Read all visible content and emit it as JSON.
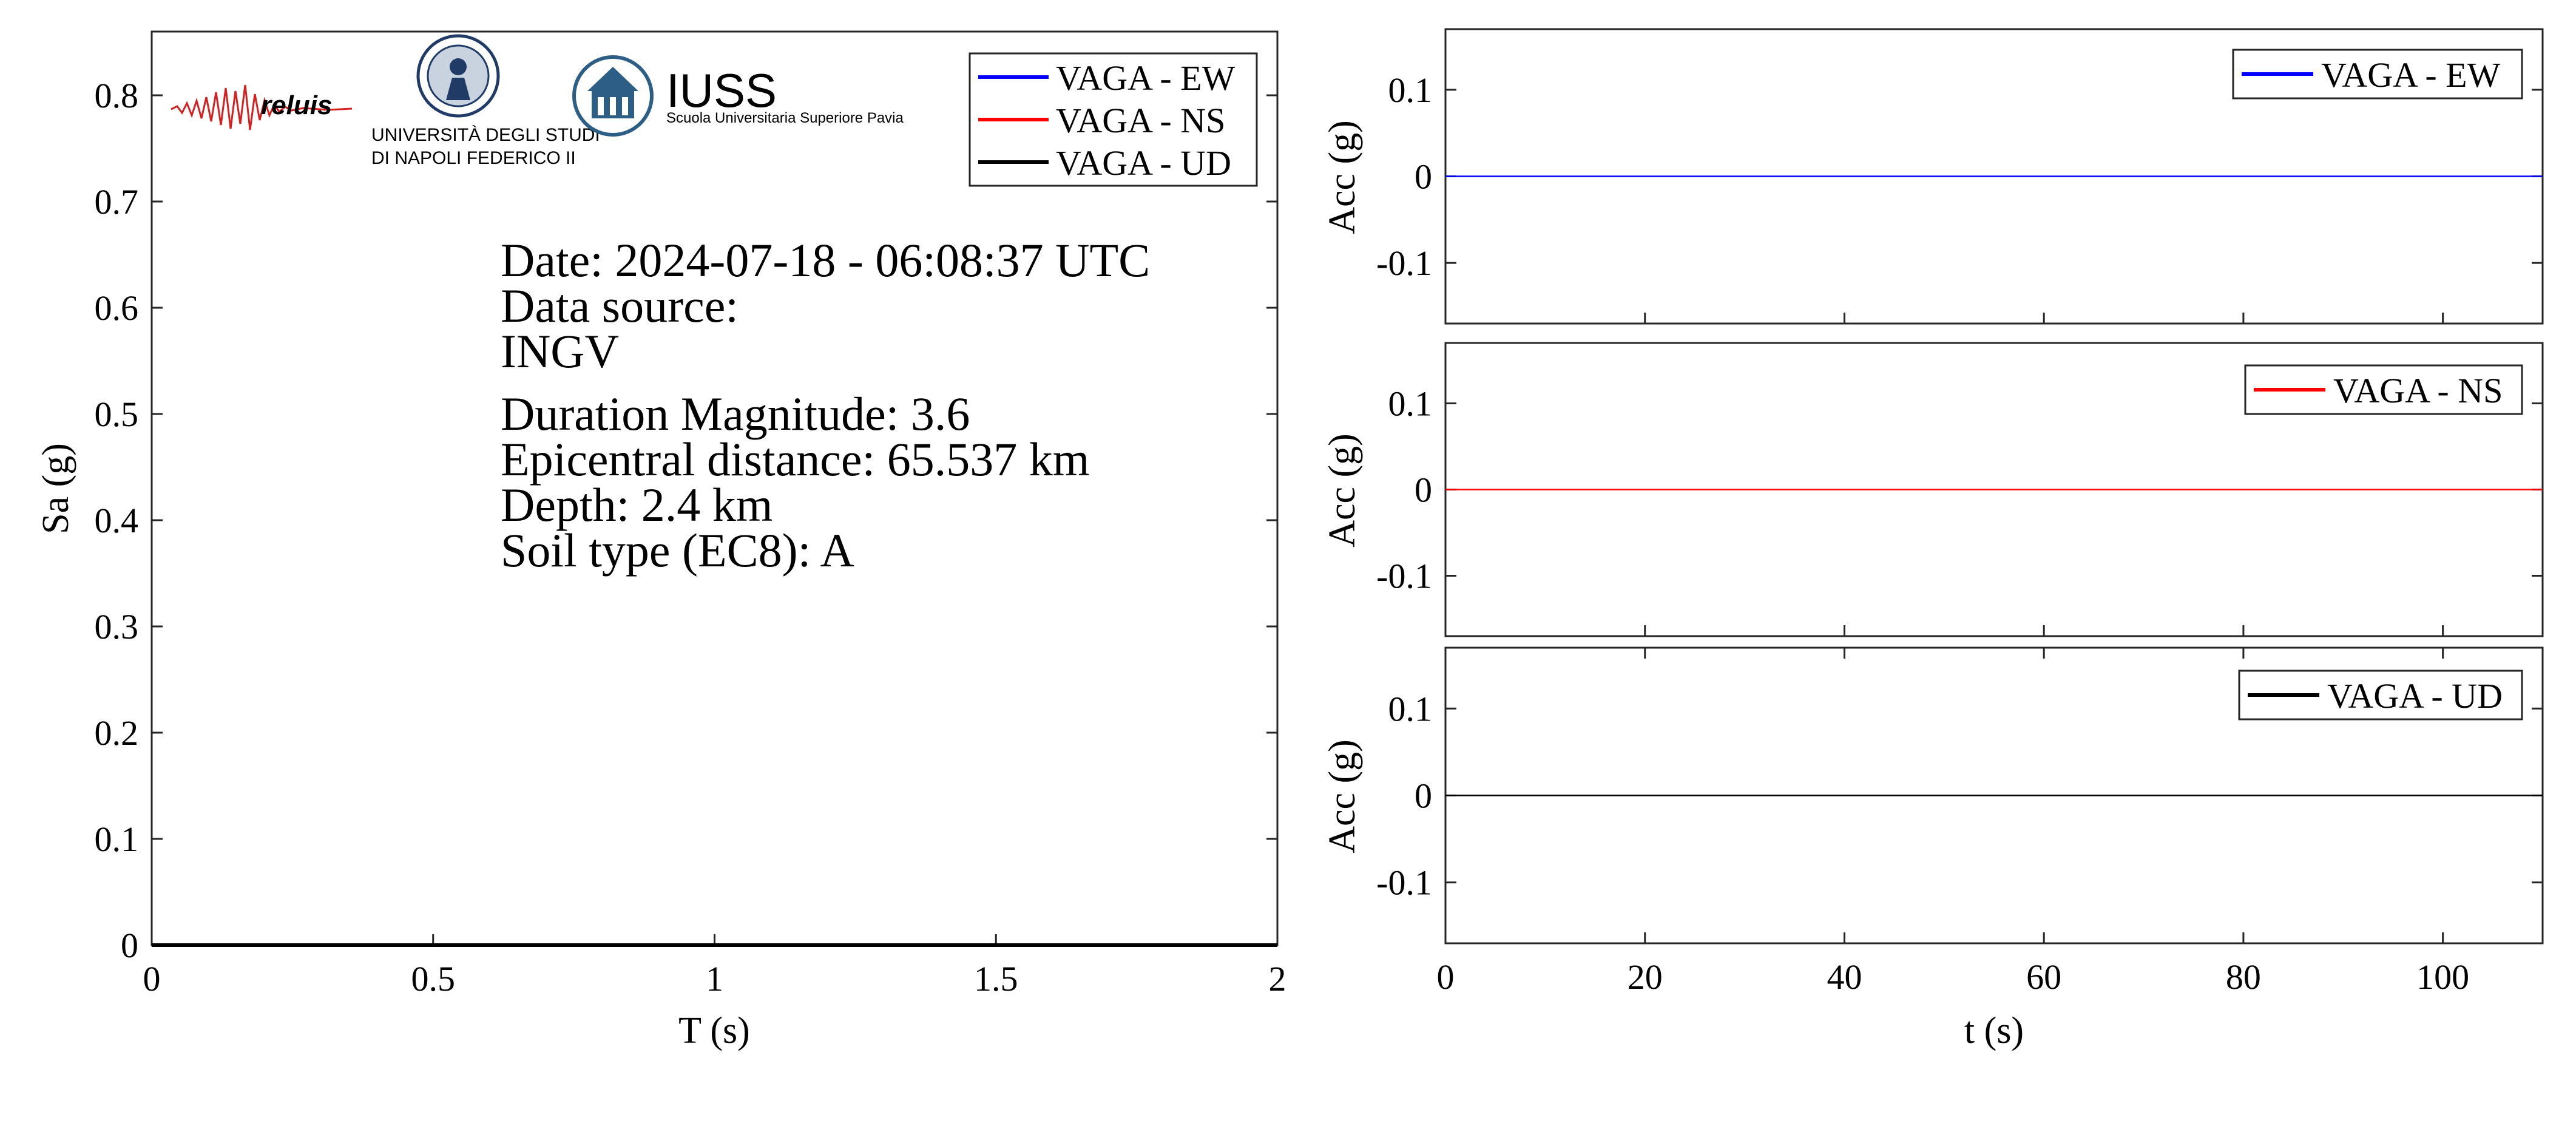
{
  "logos": {
    "reluis": {
      "label": "reluis",
      "color": "#1a2a7a",
      "trace_color": "#d62020"
    },
    "unina": {
      "line1": "UNIVERSITÀ DEGLI STUDI",
      "line2": "DI NAPOLI FEDERICO II",
      "color": "#1f3b66"
    },
    "iuss": {
      "name": "IUSS",
      "subtitle": "Scuola Universitaria Superiore Pavia",
      "color": "#2d5f86"
    }
  },
  "info": {
    "date": "Date: 2024-07-18 - 06:08:37 UTC",
    "source_label": "Data source:",
    "source": "INGV",
    "magnitude": "Duration Magnitude: 3.6",
    "distance": "Epicentral distance: 65.537 km",
    "depth": "Depth: 2.4 km",
    "soil": "Soil type (EC8): A"
  },
  "chart_data": [
    {
      "type": "line",
      "xlabel": "T (s)",
      "ylabel": "Sa (g)",
      "xlim": [
        0,
        2
      ],
      "ylim": [
        0,
        0.86
      ],
      "xticks": [
        0,
        0.5,
        1,
        1.5,
        2
      ],
      "xtick_labels": [
        "0",
        "0.5",
        "1",
        "1.5",
        "2"
      ],
      "yticks": [
        0,
        0.1,
        0.2,
        0.3,
        0.4,
        0.5,
        0.6,
        0.7,
        0.8
      ],
      "ytick_labels": [
        "0",
        "0.1",
        "0.2",
        "0.3",
        "0.4",
        "0.5",
        "0.6",
        "0.7",
        "0.8"
      ],
      "legend_position": "top-right",
      "series": [
        {
          "name": "VAGA - EW",
          "color": "#0000ff",
          "x": [
            0,
            2
          ],
          "y": [
            0,
            0
          ]
        },
        {
          "name": "VAGA - NS",
          "color": "#ff0000",
          "x": [
            0,
            2
          ],
          "y": [
            0,
            0
          ]
        },
        {
          "name": "VAGA - UD",
          "color": "#000000",
          "x": [
            0,
            2
          ],
          "y": [
            0,
            0
          ]
        }
      ]
    },
    {
      "type": "line",
      "xlabel": "",
      "ylabel": "Acc (g)",
      "xlim": [
        0,
        110
      ],
      "ylim": [
        -0.17,
        0.17
      ],
      "yticks": [
        -0.1,
        0,
        0.1
      ],
      "ytick_labels": [
        "-0.1",
        "0",
        "0.1"
      ],
      "legend_position": "top-right",
      "series": [
        {
          "name": "VAGA - EW",
          "color": "#0000ff",
          "x": [
            0,
            110
          ],
          "y": [
            0,
            0
          ]
        }
      ]
    },
    {
      "type": "line",
      "xlabel": "",
      "ylabel": "Acc (g)",
      "xlim": [
        0,
        110
      ],
      "ylim": [
        -0.17,
        0.17
      ],
      "yticks": [
        -0.1,
        0,
        0.1
      ],
      "ytick_labels": [
        "-0.1",
        "0",
        "0.1"
      ],
      "legend_position": "top-right",
      "series": [
        {
          "name": "VAGA - NS",
          "color": "#ff0000",
          "x": [
            0,
            110
          ],
          "y": [
            0,
            0
          ]
        }
      ]
    },
    {
      "type": "line",
      "xlabel": "t (s)",
      "ylabel": "Acc (g)",
      "xlim": [
        0,
        110
      ],
      "ylim": [
        -0.17,
        0.17
      ],
      "xticks": [
        0,
        20,
        40,
        60,
        80,
        100
      ],
      "xtick_labels": [
        "0",
        "20",
        "40",
        "60",
        "80",
        "100"
      ],
      "yticks": [
        -0.1,
        0,
        0.1
      ],
      "ytick_labels": [
        "-0.1",
        "0",
        "0.1"
      ],
      "legend_position": "top-right",
      "series": [
        {
          "name": "VAGA - UD",
          "color": "#000000",
          "x": [
            0,
            110
          ],
          "y": [
            0,
            0
          ]
        }
      ]
    }
  ]
}
